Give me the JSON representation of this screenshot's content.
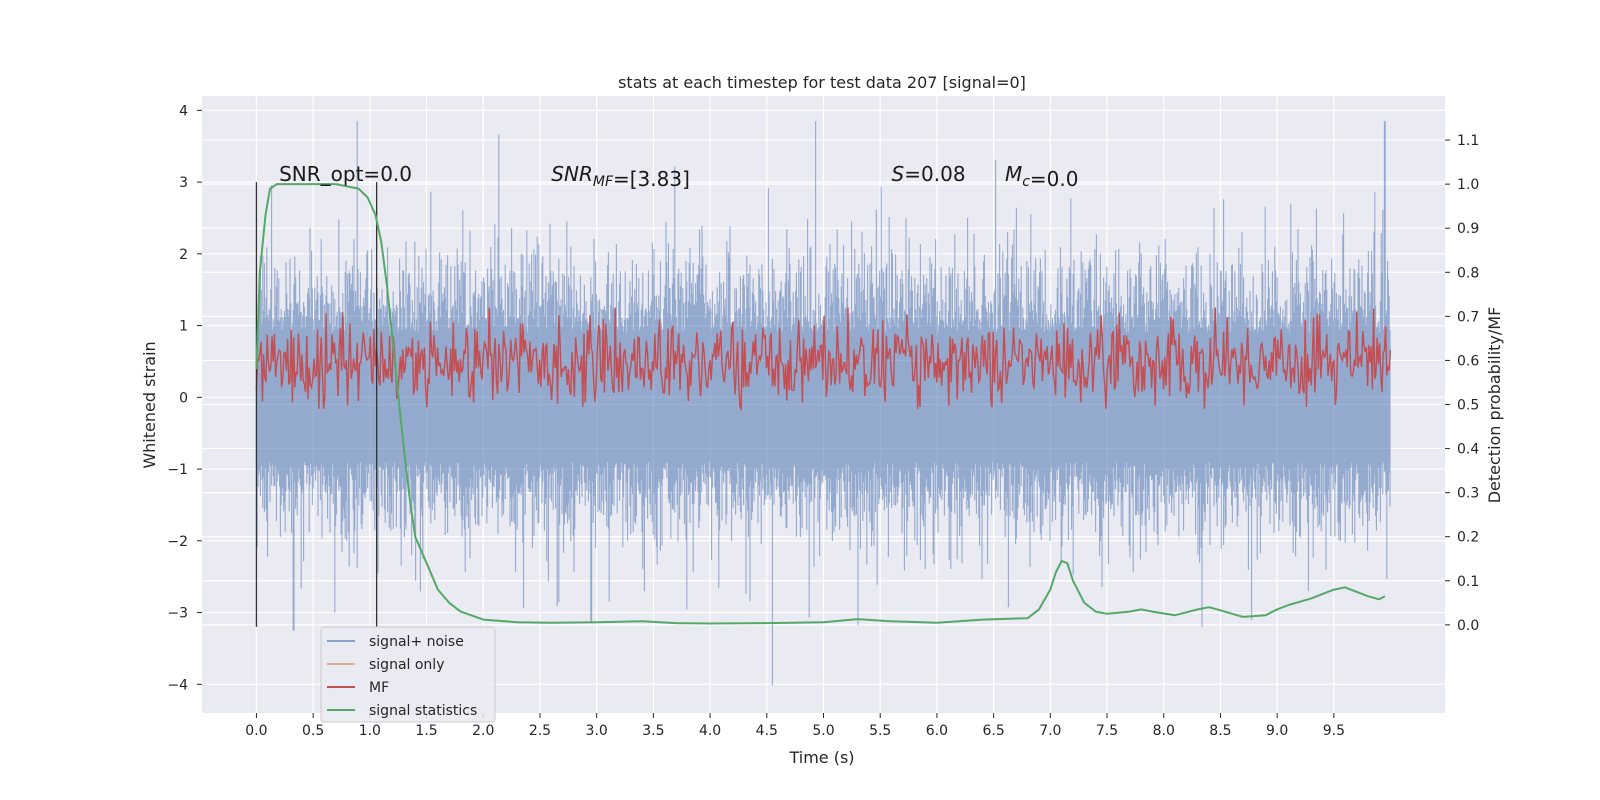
{
  "chart_data": {
    "type": "line",
    "title": "stats at each timestep for test data 207 [signal=0]",
    "xlabel": "Time (s)",
    "ylabel": "Whitened strain",
    "y2label": "Detection probability/MF",
    "xlim": [
      -0.48,
      10.48
    ],
    "ylim": [
      -4.4,
      4.2
    ],
    "y2lim": [
      -0.2,
      1.2
    ],
    "x_ticks": [
      0.0,
      0.5,
      1.0,
      1.5,
      2.0,
      2.5,
      3.0,
      3.5,
      4.0,
      4.5,
      5.0,
      5.5,
      6.0,
      6.5,
      7.0,
      7.5,
      8.0,
      8.5,
      9.0,
      9.5
    ],
    "x_tick_labels": [
      "0.0",
      "0.5",
      "1.0",
      "1.5",
      "2.0",
      "2.5",
      "3.0",
      "3.5",
      "4.0",
      "4.5",
      "5.0",
      "5.5",
      "6.0",
      "6.5",
      "7.0",
      "7.5",
      "8.0",
      "8.5",
      "9.0",
      "9.5"
    ],
    "y_ticks": [
      4,
      3,
      2,
      1,
      0,
      -1,
      -2,
      -3,
      -4
    ],
    "y_tick_labels": [
      "4",
      "3",
      "2",
      "1",
      "0",
      "−1",
      "−2",
      "−3",
      "−4"
    ],
    "y2_ticks": [
      1.1,
      1.0,
      0.9,
      0.8,
      0.7,
      0.6,
      0.5,
      0.4,
      0.3,
      0.2,
      0.1,
      0.0
    ],
    "y2_tick_labels": [
      "1.1",
      "1.0",
      "0.9",
      "0.8",
      "0.7",
      "0.6",
      "0.5",
      "0.4",
      "0.3",
      "0.2",
      "0.1",
      "0.0"
    ],
    "grid": true,
    "legend_position": "lower-left",
    "series": [
      {
        "name": "signal+ noise",
        "axis": "left",
        "color": "#4c72b0",
        "opacity": 0.55,
        "style": "noise-band",
        "x_range": [
          0.0,
          10.0
        ],
        "envelope_typical": [
          -2.0,
          1.9
        ],
        "extremes": {
          "max": 3.85,
          "min": -4.02
        }
      },
      {
        "name": "signal only",
        "axis": "left",
        "color": "#dd8452",
        "opacity": 0.5,
        "values": []
      },
      {
        "name": "MF",
        "axis": "right",
        "color": "#c44e52",
        "style": "noise-band",
        "x_range": [
          0.0,
          10.0
        ],
        "band": [
          0.51,
          0.68
        ],
        "peak": 0.72
      },
      {
        "name": "signal statistics",
        "axis": "right",
        "color": "#55a868",
        "x": [
          0.0,
          0.03,
          0.08,
          0.12,
          0.18,
          0.3,
          0.5,
          0.7,
          0.9,
          0.98,
          1.05,
          1.1,
          1.15,
          1.2,
          1.25,
          1.3,
          1.35,
          1.4,
          1.5,
          1.6,
          1.7,
          1.8,
          2.0,
          2.3,
          2.6,
          3.0,
          3.4,
          3.7,
          4.0,
          4.5,
          5.0,
          5.3,
          5.6,
          6.0,
          6.4,
          6.8,
          6.9,
          7.0,
          7.05,
          7.1,
          7.15,
          7.2,
          7.3,
          7.4,
          7.5,
          7.7,
          7.8,
          7.9,
          8.1,
          8.3,
          8.4,
          8.5,
          8.7,
          8.9,
          9.0,
          9.1,
          9.3,
          9.5,
          9.6,
          9.8,
          9.9,
          9.95
        ],
        "values": [
          0.58,
          0.8,
          0.93,
          0.99,
          1.0,
          1.0,
          1.0,
          1.0,
          0.99,
          0.97,
          0.93,
          0.87,
          0.77,
          0.65,
          0.52,
          0.4,
          0.29,
          0.2,
          0.14,
          0.08,
          0.05,
          0.03,
          0.012,
          0.006,
          0.005,
          0.006,
          0.008,
          0.004,
          0.003,
          0.004,
          0.006,
          0.013,
          0.008,
          0.005,
          0.012,
          0.015,
          0.035,
          0.08,
          0.12,
          0.145,
          0.14,
          0.1,
          0.05,
          0.03,
          0.025,
          0.03,
          0.035,
          0.03,
          0.022,
          0.035,
          0.04,
          0.033,
          0.018,
          0.022,
          0.035,
          0.045,
          0.06,
          0.08,
          0.085,
          0.065,
          0.058,
          0.065
        ]
      }
    ],
    "vlines": [
      {
        "x": 0.0,
        "y_range": [
          -3.2,
          3.0
        ],
        "color": "#333333"
      },
      {
        "x": 1.06,
        "y_range": [
          -3.2,
          3.0
        ],
        "color": "#333333"
      }
    ],
    "annotations": [
      {
        "text": "SNR_opt=0.0",
        "x": 0.2,
        "y": 3.1
      },
      {
        "text": "SNR",
        "sub": "MF",
        "rest": "=[3.83]",
        "x": 2.6,
        "y": 3.1,
        "italic_prefix": true
      },
      {
        "text": "S",
        "rest": "=0.08",
        "x": 5.6,
        "y": 3.1,
        "italic_prefix": true
      },
      {
        "text": "M",
        "sub": "c",
        "rest": "=0.0",
        "x": 6.6,
        "y": 3.1,
        "italic_prefix": true
      }
    ],
    "colors": {
      "plot_bg": "#eaeaf2",
      "grid": "#ffffff"
    }
  }
}
